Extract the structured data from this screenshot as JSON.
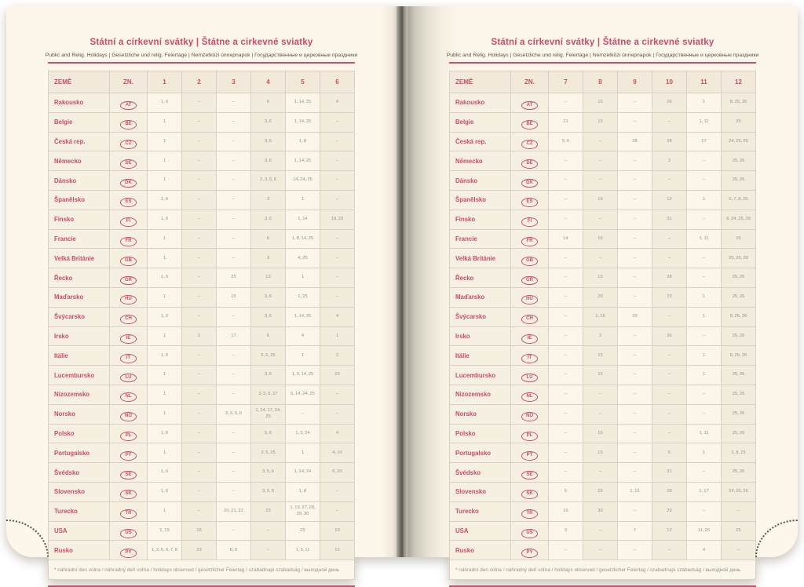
{
  "title": "Státní a církevní svátky | Štátne a cirkevné sviatky",
  "subtitle": "Public and Relig. Holidays | Gesetzliche und relig. Feiertage | Nemzetközi ünnepnapok | Государственные и церковные праздники",
  "footnote": "* náhradní den volna / náhradný deň voľna / holidays observed / gesetzlicher Feiertag / szabadnapi szabadság / выходной день",
  "colors": {
    "accent_pink": "#ce4a67",
    "rule_pink": "#c94f6b",
    "value_gray": "#9b9189",
    "page_cream": "#fcf7ea",
    "cell_beige": "#f2ecdd",
    "border": "#d9cfc5"
  },
  "left_table": {
    "headers": [
      "ZEMĚ",
      "ZN.",
      "1",
      "2",
      "3",
      "4",
      "5",
      "6"
    ],
    "rows": [
      {
        "country": "Rakousko",
        "code": "AT",
        "months": [
          "1, 6",
          "–",
          "–",
          "6",
          "1, 14, 25",
          "4"
        ]
      },
      {
        "country": "Belgie",
        "code": "BE",
        "months": [
          "1",
          "–",
          "–",
          "3, 6",
          "1, 14, 25",
          "–"
        ]
      },
      {
        "country": "Česká rep.",
        "code": "CZ",
        "months": [
          "1",
          "–",
          "–",
          "3, 6",
          "1, 8",
          "–"
        ]
      },
      {
        "country": "Německo",
        "code": "DE",
        "months": [
          "1",
          "–",
          "–",
          "3, 6",
          "1, 14, 25",
          "–"
        ]
      },
      {
        "country": "Dánsko",
        "code": "DK",
        "months": [
          "1",
          "–",
          "–",
          "2, 3, 5, 6",
          "14, 24, 25",
          "–"
        ]
      },
      {
        "country": "Španělsko",
        "code": "ES",
        "months": [
          "1, 6",
          "–",
          "–",
          "3",
          "1",
          "–"
        ]
      },
      {
        "country": "Finsko",
        "code": "FI",
        "months": [
          "1, 6",
          "–",
          "–",
          "3, 6",
          "1, 14",
          "19, 20"
        ]
      },
      {
        "country": "Francie",
        "code": "FR",
        "months": [
          "1",
          "–",
          "–",
          "6",
          "1, 8, 14, 25",
          "–"
        ]
      },
      {
        "country": "Velká Británie",
        "code": "GB",
        "months": [
          "1",
          "–",
          "–",
          "3",
          "4, 25",
          "–"
        ]
      },
      {
        "country": "Řecko",
        "code": "GR",
        "months": [
          "1, 6",
          "–",
          "25",
          "13",
          "1",
          "–"
        ]
      },
      {
        "country": "Maďarsko",
        "code": "HU",
        "months": [
          "1",
          "–",
          "15",
          "3, 6",
          "1, 25",
          "–"
        ]
      },
      {
        "country": "Švýcarsko",
        "code": "CH",
        "months": [
          "1, 2",
          "–",
          "–",
          "3, 6",
          "1, 14, 25",
          "4"
        ]
      },
      {
        "country": "Irsko",
        "code": "IE",
        "months": [
          "1",
          "2",
          "17",
          "6",
          "4",
          "1"
        ]
      },
      {
        "country": "Itálie",
        "code": "IT",
        "months": [
          "1, 6",
          "–",
          "–",
          "5, 6, 25",
          "1",
          "2"
        ]
      },
      {
        "country": "Lucembursko",
        "code": "LU",
        "months": [
          "1",
          "–",
          "–",
          "3, 6",
          "1, 9, 14, 25",
          "23"
        ]
      },
      {
        "country": "Nizozemsko",
        "code": "NL",
        "months": [
          "1",
          "–",
          "–",
          "3, 5, 6, 27",
          "5, 14, 24, 25",
          "–"
        ]
      },
      {
        "country": "Norsko",
        "code": "NO",
        "months": [
          "1",
          "–",
          "2, 3, 5, 6",
          "1, 14, 17, 24, 25",
          "–",
          "–"
        ]
      },
      {
        "country": "Polsko",
        "code": "PL",
        "months": [
          "1, 6",
          "–",
          "–",
          "5, 6",
          "1, 3, 24",
          "4"
        ]
      },
      {
        "country": "Portugalsko",
        "code": "PT",
        "months": [
          "1",
          "–",
          "–",
          "3, 5, 25",
          "1",
          "4, 10"
        ]
      },
      {
        "country": "Švédsko",
        "code": "SE",
        "months": [
          "1, 6",
          "–",
          "–",
          "3, 5, 6",
          "1, 14, 24",
          "6, 20"
        ]
      },
      {
        "country": "Slovensko",
        "code": "SK",
        "months": [
          "1, 6",
          "–",
          "–",
          "3, 5, 6",
          "1, 8",
          "–"
        ]
      },
      {
        "country": "Turecko",
        "code": "TR",
        "months": [
          "1",
          "–",
          "20, 21, 22",
          "23",
          "1, 19, 27, 28, 29, 30",
          "–"
        ]
      },
      {
        "country": "USA",
        "code": "US",
        "months": [
          "1, 19",
          "16",
          "–",
          "–",
          "25",
          "19"
        ]
      },
      {
        "country": "Rusko",
        "code": "PY",
        "months": [
          "1, 2, 5, 6, 7, 8",
          "23",
          "8, 9",
          "–",
          "1, 9, 11",
          "12"
        ]
      }
    ]
  },
  "right_table": {
    "headers": [
      "ZEMĚ",
      "ZN.",
      "7",
      "8",
      "9",
      "10",
      "11",
      "12"
    ],
    "rows": [
      {
        "country": "Rakousko",
        "code": "AT",
        "months": [
          "–",
          "15",
          "–",
          "26",
          "1",
          "8, 25, 26"
        ]
      },
      {
        "country": "Belgie",
        "code": "BE",
        "months": [
          "21",
          "15",
          "–",
          "–",
          "1, 11",
          "25"
        ]
      },
      {
        "country": "Česká rep.",
        "code": "CZ",
        "months": [
          "5, 6",
          "–",
          "28",
          "28",
          "17",
          "24, 25, 26"
        ]
      },
      {
        "country": "Německo",
        "code": "DE",
        "months": [
          "–",
          "–",
          "–",
          "3",
          "–",
          "25, 26"
        ]
      },
      {
        "country": "Dánsko",
        "code": "DK",
        "months": [
          "–",
          "–",
          "–",
          "–",
          "–",
          "25, 26"
        ]
      },
      {
        "country": "Španělsko",
        "code": "ES",
        "months": [
          "–",
          "15",
          "–",
          "12",
          "1",
          "6, 7, 8, 25"
        ]
      },
      {
        "country": "Finsko",
        "code": "FI",
        "months": [
          "–",
          "–",
          "–",
          "31",
          "–",
          "6, 24, 25, 26"
        ]
      },
      {
        "country": "Francie",
        "code": "FR",
        "months": [
          "14",
          "15",
          "–",
          "–",
          "1, 11",
          "25"
        ]
      },
      {
        "country": "Velká Británie",
        "code": "GB",
        "months": [
          "–",
          "–",
          "–",
          "–",
          "–",
          "25, 26, 28"
        ]
      },
      {
        "country": "Řecko",
        "code": "GR",
        "months": [
          "–",
          "15",
          "–",
          "28",
          "–",
          "25, 26"
        ]
      },
      {
        "country": "Maďarsko",
        "code": "HU",
        "months": [
          "–",
          "20",
          "–",
          "23",
          "1",
          "25, 26"
        ]
      },
      {
        "country": "Švýcarsko",
        "code": "CH",
        "months": [
          "–",
          "1, 15",
          "20",
          "–",
          "1",
          "8, 25, 26"
        ]
      },
      {
        "country": "Irsko",
        "code": "IE",
        "months": [
          "–",
          "3",
          "–",
          "26",
          "–",
          "25, 26"
        ]
      },
      {
        "country": "Itálie",
        "code": "IT",
        "months": [
          "–",
          "15",
          "–",
          "–",
          "1",
          "8, 25, 26"
        ]
      },
      {
        "country": "Lucembursko",
        "code": "LU",
        "months": [
          "–",
          "15",
          "–",
          "–",
          "1",
          "25, 26"
        ]
      },
      {
        "country": "Nizozemsko",
        "code": "NL",
        "months": [
          "–",
          "–",
          "–",
          "–",
          "–",
          "25, 26"
        ]
      },
      {
        "country": "Norsko",
        "code": "NO",
        "months": [
          "–",
          "–",
          "–",
          "–",
          "–",
          "25, 26"
        ]
      },
      {
        "country": "Polsko",
        "code": "PL",
        "months": [
          "–",
          "15",
          "–",
          "–",
          "1, 11",
          "25, 26"
        ]
      },
      {
        "country": "Portugalsko",
        "code": "PT",
        "months": [
          "–",
          "15",
          "–",
          "5",
          "1",
          "1, 8, 25"
        ]
      },
      {
        "country": "Švédsko",
        "code": "SE",
        "months": [
          "–",
          "–",
          "–",
          "31",
          "–",
          "25, 26"
        ]
      },
      {
        "country": "Slovensko",
        "code": "SK",
        "months": [
          "5",
          "29",
          "1, 15",
          "28",
          "1, 17",
          "24, 25, 26"
        ]
      },
      {
        "country": "Turecko",
        "code": "TR",
        "months": [
          "15",
          "30",
          "–",
          "29",
          "–",
          "–"
        ]
      },
      {
        "country": "USA",
        "code": "US",
        "months": [
          "3",
          "–",
          "7",
          "12",
          "11, 26",
          "25"
        ]
      },
      {
        "country": "Rusko",
        "code": "PY",
        "months": [
          "–",
          "–",
          "–",
          "–",
          "4",
          "–"
        ]
      }
    ]
  }
}
